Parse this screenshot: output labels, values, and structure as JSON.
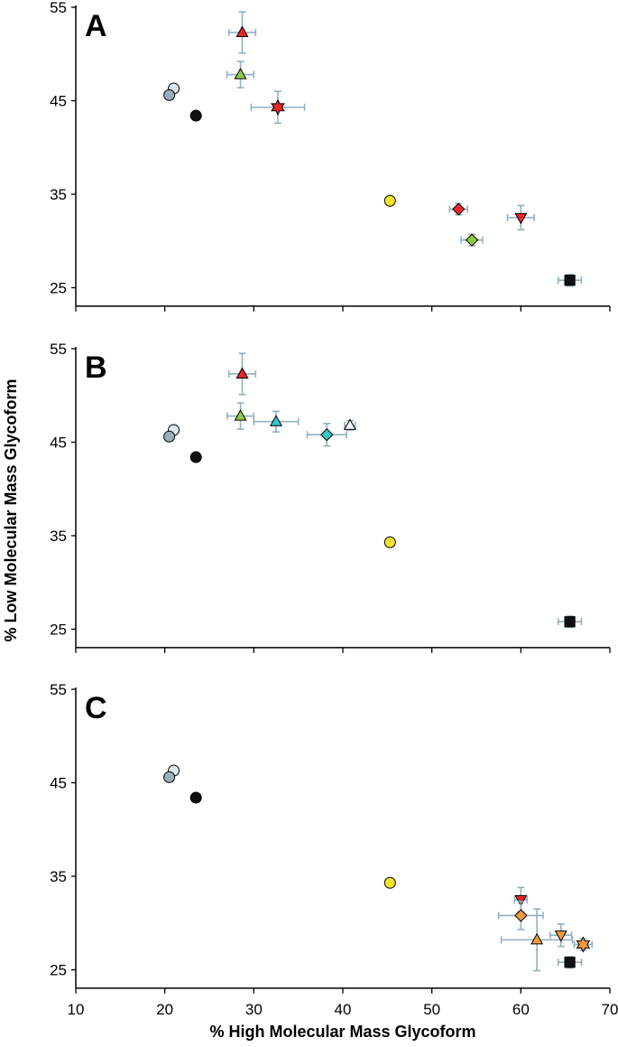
{
  "chart_data": {
    "type": "scatter",
    "xlabel": "% High Molecular Mass Glycoform",
    "ylabel": "% Low Molecular Mass Glycoform",
    "xlim": [
      10,
      70
    ],
    "ylim": [
      24,
      55
    ],
    "x_ticks": [
      "10",
      "20",
      "30",
      "40",
      "50",
      "60",
      "70"
    ],
    "y_ticks": [
      "25",
      "35",
      "45",
      "55"
    ],
    "grid": false,
    "legend": "none",
    "panels": [
      {
        "label": "A",
        "points": [
          {
            "x": 21.0,
            "y": 46.3,
            "shape": "circle",
            "color": "#dbe7ec"
          },
          {
            "x": 20.5,
            "y": 45.6,
            "shape": "circle",
            "color": "#97afb8"
          },
          {
            "x": 23.5,
            "y": 43.4,
            "shape": "circle",
            "color": "#111111"
          },
          {
            "x": 28.7,
            "y": 52.3,
            "xerr": 1.5,
            "yerr": 2.2,
            "shape": "triangle-up",
            "color": "#e8262a"
          },
          {
            "x": 28.5,
            "y": 47.8,
            "xerr": 1.5,
            "yerr": 1.4,
            "shape": "triangle-up",
            "color": "#8ccc44"
          },
          {
            "x": 32.7,
            "y": 44.3,
            "xerr": 3.0,
            "yerr": 1.7,
            "shape": "star",
            "color": "#e8262a"
          },
          {
            "x": 45.3,
            "y": 34.3,
            "shape": "circle",
            "color": "#f4e32c"
          },
          {
            "x": 53.0,
            "y": 33.4,
            "xerr": 1.0,
            "yerr": 0.6,
            "shape": "diamond",
            "color": "#e8262a"
          },
          {
            "x": 60.0,
            "y": 32.5,
            "xerr": 1.5,
            "yerr": 1.3,
            "shape": "triangle-down",
            "color": "#e8262a"
          },
          {
            "x": 54.5,
            "y": 30.1,
            "xerr": 1.2,
            "yerr": 0.6,
            "shape": "diamond",
            "color": "#8ccc44"
          },
          {
            "x": 65.5,
            "y": 25.8,
            "xerr": 1.3,
            "yerr": 0.6,
            "shape": "square",
            "color": "#111111"
          }
        ]
      },
      {
        "label": "B",
        "points": [
          {
            "x": 21.0,
            "y": 46.3,
            "shape": "circle",
            "color": "#dbe7ec"
          },
          {
            "x": 20.5,
            "y": 45.6,
            "shape": "circle",
            "color": "#97afb8"
          },
          {
            "x": 23.5,
            "y": 43.4,
            "shape": "circle",
            "color": "#111111"
          },
          {
            "x": 28.7,
            "y": 52.3,
            "xerr": 1.5,
            "yerr": 2.2,
            "shape": "triangle-up",
            "color": "#e8262a"
          },
          {
            "x": 28.5,
            "y": 47.8,
            "xerr": 1.5,
            "yerr": 1.4,
            "shape": "triangle-up",
            "color": "#8ccc44"
          },
          {
            "x": 32.5,
            "y": 47.2,
            "xerr": 2.5,
            "yerr": 1.1,
            "shape": "triangle-up",
            "color": "#36c6cc"
          },
          {
            "x": 38.2,
            "y": 45.8,
            "xerr": 2.2,
            "yerr": 1.2,
            "shape": "diamond",
            "color": "#36c6cc"
          },
          {
            "x": 40.8,
            "y": 46.8,
            "xerr": 0.6,
            "yerr": 0.5,
            "shape": "triangle-up",
            "color": "#f2f2f2"
          },
          {
            "x": 45.3,
            "y": 34.3,
            "shape": "circle",
            "color": "#f4e32c"
          },
          {
            "x": 65.5,
            "y": 25.8,
            "xerr": 1.3,
            "yerr": 0.6,
            "shape": "square",
            "color": "#111111"
          }
        ]
      },
      {
        "label": "C",
        "points": [
          {
            "x": 21.0,
            "y": 46.3,
            "shape": "circle",
            "color": "#dbe7ec"
          },
          {
            "x": 20.5,
            "y": 45.6,
            "shape": "circle",
            "color": "#97afb8"
          },
          {
            "x": 23.5,
            "y": 43.4,
            "shape": "circle",
            "color": "#111111"
          },
          {
            "x": 45.3,
            "y": 34.3,
            "shape": "circle",
            "color": "#f4e32c"
          },
          {
            "x": 60.0,
            "y": 32.5,
            "xerr": 0.7,
            "yerr": 1.3,
            "shape": "triangle-down",
            "color": "#e8262a"
          },
          {
            "x": 60.0,
            "y": 30.8,
            "xerr": 2.5,
            "yerr": 1.5,
            "shape": "diamond",
            "color": "#f49a3c"
          },
          {
            "x": 61.8,
            "y": 28.2,
            "xerr": 4.0,
            "yerr": 3.3,
            "shape": "triangle-up",
            "color": "#f49a3c"
          },
          {
            "x": 64.5,
            "y": 28.7,
            "xerr": 1.2,
            "yerr": 1.2,
            "shape": "triangle-down",
            "color": "#f49a3c"
          },
          {
            "x": 67.0,
            "y": 27.7,
            "xerr": 1.0,
            "yerr": 0.6,
            "shape": "star",
            "color": "#f49a3c"
          },
          {
            "x": 65.5,
            "y": 25.8,
            "xerr": 1.3,
            "yerr": 0.6,
            "shape": "square",
            "color": "#111111"
          }
        ]
      }
    ]
  }
}
